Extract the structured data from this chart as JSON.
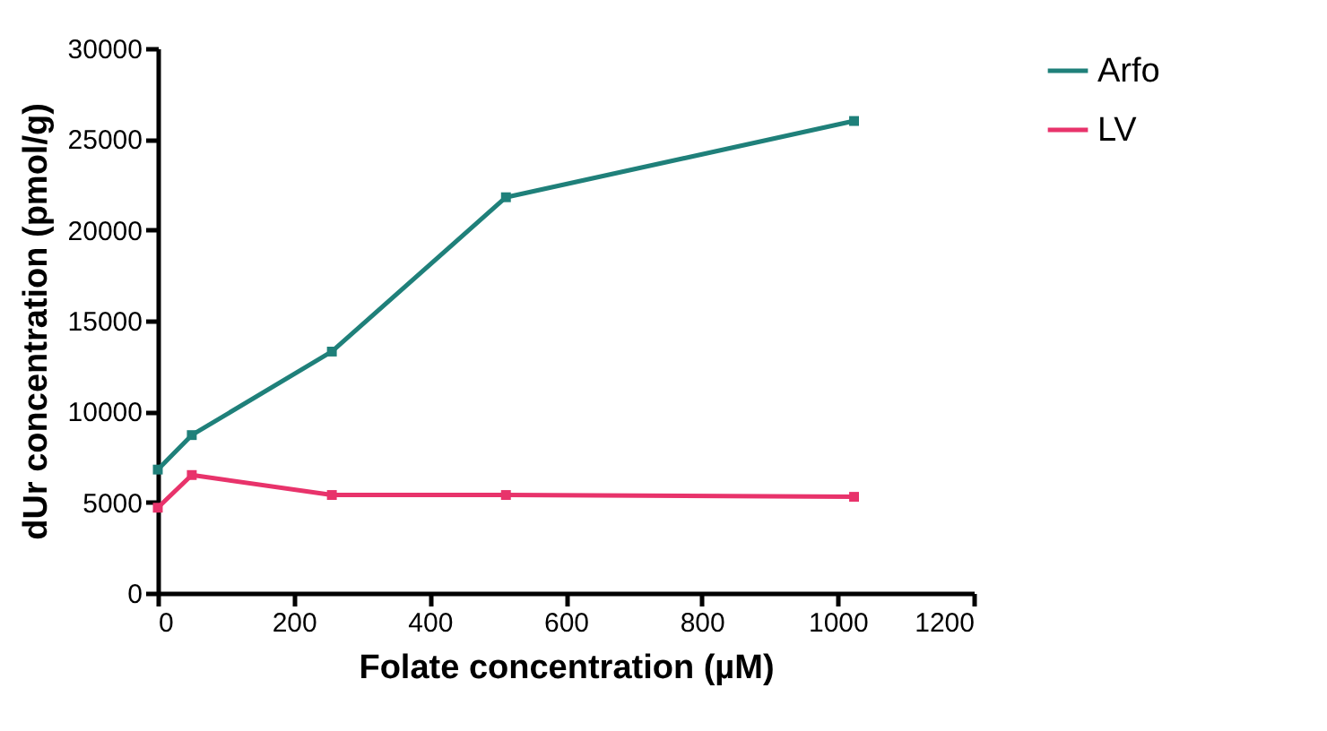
{
  "chart_data": {
    "type": "line",
    "xlabel": "Folate concentration (µM)",
    "ylabel": "dUr concentration (pmol/g)",
    "x": [
      0,
      50,
      256,
      512,
      1024
    ],
    "series": [
      {
        "name": "Arfo",
        "color": "#1f807a",
        "values": [
          6800,
          8700,
          13300,
          21800,
          26000
        ]
      },
      {
        "name": "LV",
        "color": "#e8336b",
        "values": [
          4700,
          6500,
          5400,
          5400,
          5300
        ]
      }
    ],
    "xlim": [
      0,
      1200
    ],
    "xticks": [
      0,
      200,
      400,
      600,
      800,
      1000,
      1200
    ],
    "ylim": [
      0,
      30000
    ],
    "yticks": [
      0,
      5000,
      10000,
      15000,
      20000,
      25000,
      30000
    ],
    "grid": false,
    "legend": "top right",
    "marker": "square",
    "line_style": "solid"
  }
}
